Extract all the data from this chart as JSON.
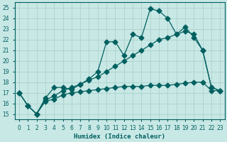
{
  "xlabel": "Humidex (Indice chaleur)",
  "background_color": "#c8e8e5",
  "grid_color": "#b0d4d0",
  "line_color": "#006060",
  "xlim": [
    -0.5,
    23.5
  ],
  "ylim": [
    14.5,
    25.5
  ],
  "xticks": [
    0,
    1,
    2,
    3,
    4,
    5,
    6,
    7,
    8,
    9,
    10,
    11,
    12,
    13,
    14,
    15,
    16,
    17,
    18,
    19,
    20,
    21,
    22,
    23
  ],
  "yticks": [
    15,
    16,
    17,
    18,
    19,
    20,
    21,
    22,
    23,
    24,
    25
  ],
  "series1_x": [
    0,
    1,
    2,
    3,
    4,
    5,
    6,
    7,
    8,
    9,
    10,
    11,
    12,
    13,
    14,
    15,
    16,
    17,
    18,
    19,
    20,
    21,
    22,
    23
  ],
  "series1_y": [
    17.0,
    15.8,
    15.0,
    16.5,
    17.5,
    17.5,
    17.3,
    17.8,
    18.3,
    19.0,
    21.8,
    21.8,
    20.5,
    22.5,
    22.2,
    24.9,
    24.7,
    24.0,
    22.5,
    23.2,
    22.2,
    21.0,
    17.5,
    17.2
  ],
  "series2_x": [
    0,
    1,
    2,
    3,
    4,
    5,
    6,
    7,
    8,
    9,
    10,
    11,
    12,
    13,
    14,
    15,
    16,
    17,
    18,
    19,
    20,
    21,
    22,
    23
  ],
  "series2_y": [
    17.0,
    15.8,
    15.0,
    16.2,
    16.4,
    16.8,
    17.0,
    17.1,
    17.2,
    17.3,
    17.4,
    17.5,
    17.6,
    17.6,
    17.6,
    17.7,
    17.7,
    17.7,
    17.8,
    17.9,
    18.0,
    18.0,
    17.2,
    17.2
  ],
  "series3_x": [
    0,
    1,
    2,
    3,
    4,
    5,
    6,
    7,
    8,
    9,
    10,
    11,
    12,
    13,
    14,
    15,
    16,
    17,
    18,
    19,
    20,
    21,
    22,
    23
  ],
  "series3_y": [
    17.0,
    15.8,
    15.0,
    16.3,
    16.7,
    17.2,
    17.5,
    17.8,
    18.2,
    18.5,
    19.0,
    19.5,
    20.0,
    20.5,
    21.0,
    21.5,
    22.0,
    22.2,
    22.5,
    22.8,
    22.5,
    21.0,
    17.5,
    17.2
  ]
}
